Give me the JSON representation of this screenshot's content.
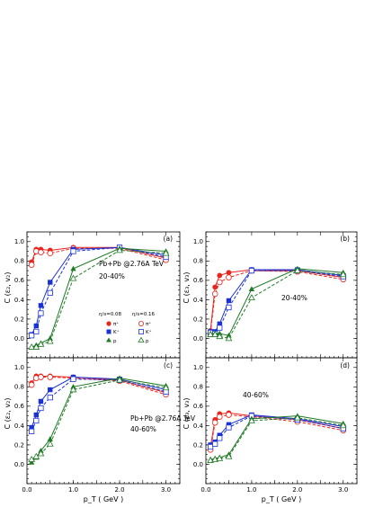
{
  "colors": {
    "pi": "#e8261e",
    "K": "#1a31d6",
    "p": "#1f7a25"
  },
  "legend": {
    "group1": "η/s=0.08",
    "group2": "η/s=0.16",
    "pi": "π⁺",
    "K": "K⁺",
    "p": "p"
  },
  "chart_data": [
    {
      "type": "line",
      "panel": "(a)",
      "ylabel": "C (ε₂, v₂)",
      "xlabel": "",
      "annotations": [
        "Pb+Pb @2.76A TeV",
        "20-40%"
      ],
      "xlim": [
        0,
        3.3
      ],
      "ylim": [
        -0.2,
        1.1
      ],
      "xticks": [
        0,
        0.5,
        1,
        1.5,
        2,
        2.5,
        3
      ],
      "yticks": [
        0.0,
        0.2,
        0.4,
        0.6,
        0.8,
        1.0
      ],
      "x": [
        0.1,
        0.2,
        0.3,
        0.5,
        1.0,
        2.0,
        3.0
      ],
      "series": [
        {
          "name": "π⁺ (η/s=0.08)",
          "particle": "pi",
          "eta": 0.08,
          "values": [
            0.79,
            0.92,
            0.92,
            0.91,
            0.94,
            0.94,
            0.83
          ]
        },
        {
          "name": "π⁺ (η/s=0.16)",
          "particle": "pi",
          "eta": 0.16,
          "values": [
            0.76,
            0.9,
            0.89,
            0.88,
            0.93,
            0.93,
            0.81
          ]
        },
        {
          "name": "K⁺ (η/s=0.08)",
          "particle": "K",
          "eta": 0.08,
          "values": [
            0.04,
            0.13,
            0.34,
            0.58,
            0.92,
            0.94,
            0.86
          ]
        },
        {
          "name": "K⁺ (η/s=0.16)",
          "particle": "K",
          "eta": 0.16,
          "values": [
            0.03,
            0.07,
            0.26,
            0.47,
            0.9,
            0.94,
            0.84
          ]
        },
        {
          "name": "p (η/s=0.08)",
          "particle": "p",
          "eta": 0.08,
          "values": [
            -0.09,
            -0.07,
            -0.05,
            0.0,
            0.72,
            0.93,
            0.9
          ]
        },
        {
          "name": "p (η/s=0.16)",
          "particle": "p",
          "eta": 0.16,
          "values": [
            -0.09,
            -0.09,
            -0.06,
            -0.03,
            0.62,
            0.91,
            0.88
          ]
        }
      ]
    },
    {
      "type": "line",
      "panel": "(b)",
      "ylabel": "C (ε₃, v₃)",
      "xlabel": "",
      "annotations": [
        "20-40%"
      ],
      "xlim": [
        0,
        3.3
      ],
      "ylim": [
        -0.2,
        1.1
      ],
      "xticks": [
        0,
        0.5,
        1,
        1.5,
        2,
        2.5,
        3
      ],
      "yticks": [
        0.0,
        0.2,
        0.4,
        0.6,
        0.8,
        1.0
      ],
      "x": [
        0.1,
        0.2,
        0.3,
        0.5,
        1.0,
        2.0,
        3.0
      ],
      "series": [
        {
          "name": "π⁺ (η/s=0.08)",
          "particle": "pi",
          "eta": 0.08,
          "values": [
            0.08,
            0.53,
            0.65,
            0.68,
            0.71,
            0.7,
            0.63
          ]
        },
        {
          "name": "π⁺ (η/s=0.16)",
          "particle": "pi",
          "eta": 0.16,
          "values": [
            0.06,
            0.46,
            0.58,
            0.63,
            0.7,
            0.69,
            0.61
          ]
        },
        {
          "name": "K⁺ (η/s=0.08)",
          "particle": "K",
          "eta": 0.08,
          "values": [
            0.07,
            0.07,
            0.15,
            0.39,
            0.71,
            0.71,
            0.65
          ]
        },
        {
          "name": "K⁺ (η/s=0.16)",
          "particle": "K",
          "eta": 0.16,
          "values": [
            0.06,
            0.05,
            0.11,
            0.32,
            0.7,
            0.7,
            0.64
          ]
        },
        {
          "name": "p (η/s=0.08)",
          "particle": "p",
          "eta": 0.08,
          "values": [
            0.05,
            0.05,
            0.05,
            0.03,
            0.51,
            0.72,
            0.68
          ]
        },
        {
          "name": "p (η/s=0.16)",
          "particle": "p",
          "eta": 0.16,
          "values": [
            0.04,
            0.04,
            0.02,
            0.0,
            0.42,
            0.7,
            0.66
          ]
        }
      ]
    },
    {
      "type": "line",
      "panel": "(c)",
      "ylabel": "C (ε₂, v₂)",
      "xlabel": "p_T ( GeV )",
      "annotations": [
        "Pb+Pb @2.76A TeV",
        "40-60%"
      ],
      "xlim": [
        0,
        3.3
      ],
      "ylim": [
        -0.2,
        1.1
      ],
      "xticks": [
        0,
        0.5,
        1,
        1.5,
        2,
        2.5,
        3
      ],
      "yticks": [
        0.0,
        0.2,
        0.4,
        0.6,
        0.8,
        1.0
      ],
      "x": [
        0.1,
        0.2,
        0.3,
        0.5,
        1.0,
        2.0,
        3.0
      ],
      "series": [
        {
          "name": "π⁺ (η/s=0.08)",
          "particle": "pi",
          "eta": 0.08,
          "values": [
            0.84,
            0.91,
            0.91,
            0.91,
            0.9,
            0.87,
            0.74
          ]
        },
        {
          "name": "π⁺ (η/s=0.16)",
          "particle": "pi",
          "eta": 0.16,
          "values": [
            0.82,
            0.89,
            0.9,
            0.9,
            0.89,
            0.86,
            0.72
          ]
        },
        {
          "name": "K⁺ (η/s=0.08)",
          "particle": "K",
          "eta": 0.08,
          "values": [
            0.38,
            0.51,
            0.65,
            0.77,
            0.9,
            0.88,
            0.77
          ]
        },
        {
          "name": "K⁺ (η/s=0.16)",
          "particle": "K",
          "eta": 0.16,
          "values": [
            0.34,
            0.45,
            0.58,
            0.69,
            0.88,
            0.87,
            0.75
          ]
        },
        {
          "name": "p (η/s=0.08)",
          "particle": "p",
          "eta": 0.08,
          "values": [
            0.02,
            0.07,
            0.14,
            0.26,
            0.8,
            0.89,
            0.81
          ]
        },
        {
          "name": "p (η/s=0.16)",
          "particle": "p",
          "eta": 0.16,
          "values": [
            0.05,
            0.08,
            0.11,
            0.21,
            0.77,
            0.87,
            0.79
          ]
        }
      ]
    },
    {
      "type": "line",
      "panel": "(d)",
      "ylabel": "C (ε₃, v₃)",
      "xlabel": "p_T ( GeV )",
      "annotations": [
        "40-60%"
      ],
      "xlim": [
        0,
        3.3
      ],
      "ylim": [
        -0.2,
        1.1
      ],
      "xticks": [
        0,
        0.5,
        1,
        1.5,
        2,
        2.5,
        3
      ],
      "yticks": [
        0.0,
        0.2,
        0.4,
        0.6,
        0.8,
        1.0
      ],
      "x": [
        0.1,
        0.2,
        0.3,
        0.5,
        1.0,
        2.0,
        3.0
      ],
      "series": [
        {
          "name": "π⁺ (η/s=0.08)",
          "particle": "pi",
          "eta": 0.08,
          "values": [
            0.18,
            0.46,
            0.52,
            0.53,
            0.5,
            0.46,
            0.37
          ]
        },
        {
          "name": "π⁺ (η/s=0.16)",
          "particle": "pi",
          "eta": 0.16,
          "values": [
            0.15,
            0.43,
            0.49,
            0.51,
            0.49,
            0.44,
            0.35
          ]
        },
        {
          "name": "K⁺ (η/s=0.08)",
          "particle": "K",
          "eta": 0.08,
          "values": [
            0.2,
            0.23,
            0.3,
            0.41,
            0.51,
            0.47,
            0.39
          ]
        },
        {
          "name": "K⁺ (η/s=0.16)",
          "particle": "K",
          "eta": 0.16,
          "values": [
            0.18,
            0.21,
            0.27,
            0.38,
            0.5,
            0.46,
            0.37
          ]
        },
        {
          "name": "p (η/s=0.08)",
          "particle": "p",
          "eta": 0.08,
          "values": [
            0.05,
            0.06,
            0.07,
            0.1,
            0.47,
            0.5,
            0.42
          ]
        },
        {
          "name": "p (η/s=0.16)",
          "particle": "p",
          "eta": 0.16,
          "values": [
            0.04,
            0.05,
            0.06,
            0.08,
            0.45,
            0.48,
            0.4
          ]
        }
      ]
    }
  ]
}
